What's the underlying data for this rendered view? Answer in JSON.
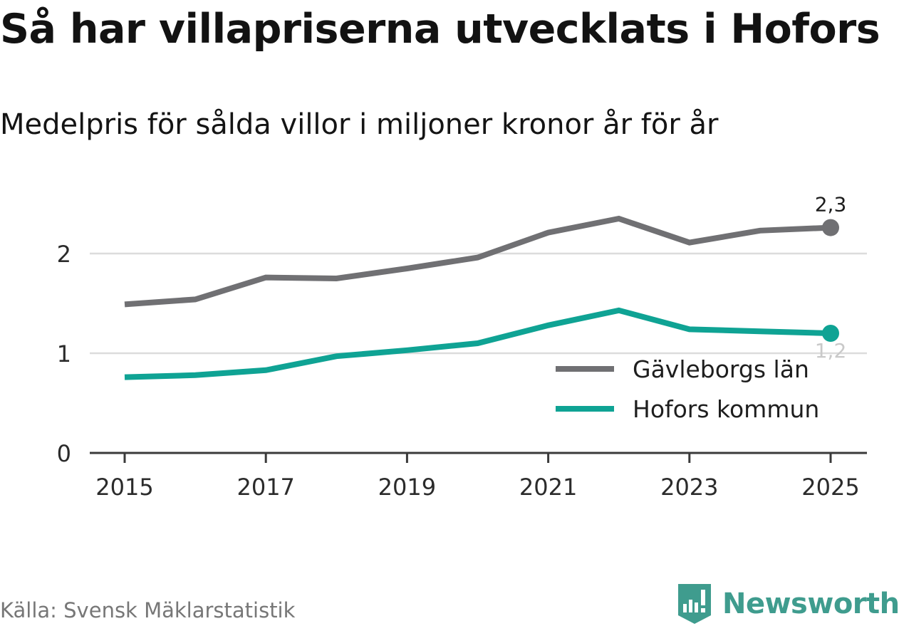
{
  "title": "Så har villapriserna utvecklats i Hofors",
  "subtitle": "Medelpris för sålda villor i miljoner kronor år för år",
  "source": "Källa: Svensk Mäklarstatistik",
  "brand": "Newsworthy",
  "colors": {
    "gavleborg": "#707073",
    "hofors": "#0fa394",
    "grid": "#dcdcdc",
    "axis": "#3a3a3a",
    "brand": "#3f9c8e"
  },
  "chart_data": {
    "type": "line",
    "title": "Så har villapriserna utvecklats i Hofors",
    "subtitle": "Medelpris för sålda villor i miljoner kronor år för år",
    "xlabel": "",
    "ylabel": "",
    "x": [
      2015,
      2016,
      2017,
      2018,
      2019,
      2020,
      2021,
      2022,
      2023,
      2024,
      2025
    ],
    "x_ticks": [
      "2015",
      "2017",
      "2019",
      "2021",
      "2023",
      "2025"
    ],
    "y_ticks": [
      "0",
      "1",
      "2"
    ],
    "ylim": [
      0,
      2.6
    ],
    "xlim": [
      2014.5,
      2025.5
    ],
    "grid": true,
    "legend_position": "bottom-right",
    "series": [
      {
        "name": "Gävleborgs län",
        "color": "#707073",
        "end_label": "2,3",
        "values": [
          1.49,
          1.54,
          1.76,
          1.75,
          1.85,
          1.96,
          2.21,
          2.35,
          2.11,
          2.23,
          2.26
        ]
      },
      {
        "name": "Hofors kommun",
        "color": "#0fa394",
        "end_label": "1,2",
        "values": [
          0.76,
          0.78,
          0.83,
          0.97,
          1.03,
          1.1,
          1.28,
          1.43,
          1.24,
          1.22,
          1.2
        ]
      }
    ]
  }
}
